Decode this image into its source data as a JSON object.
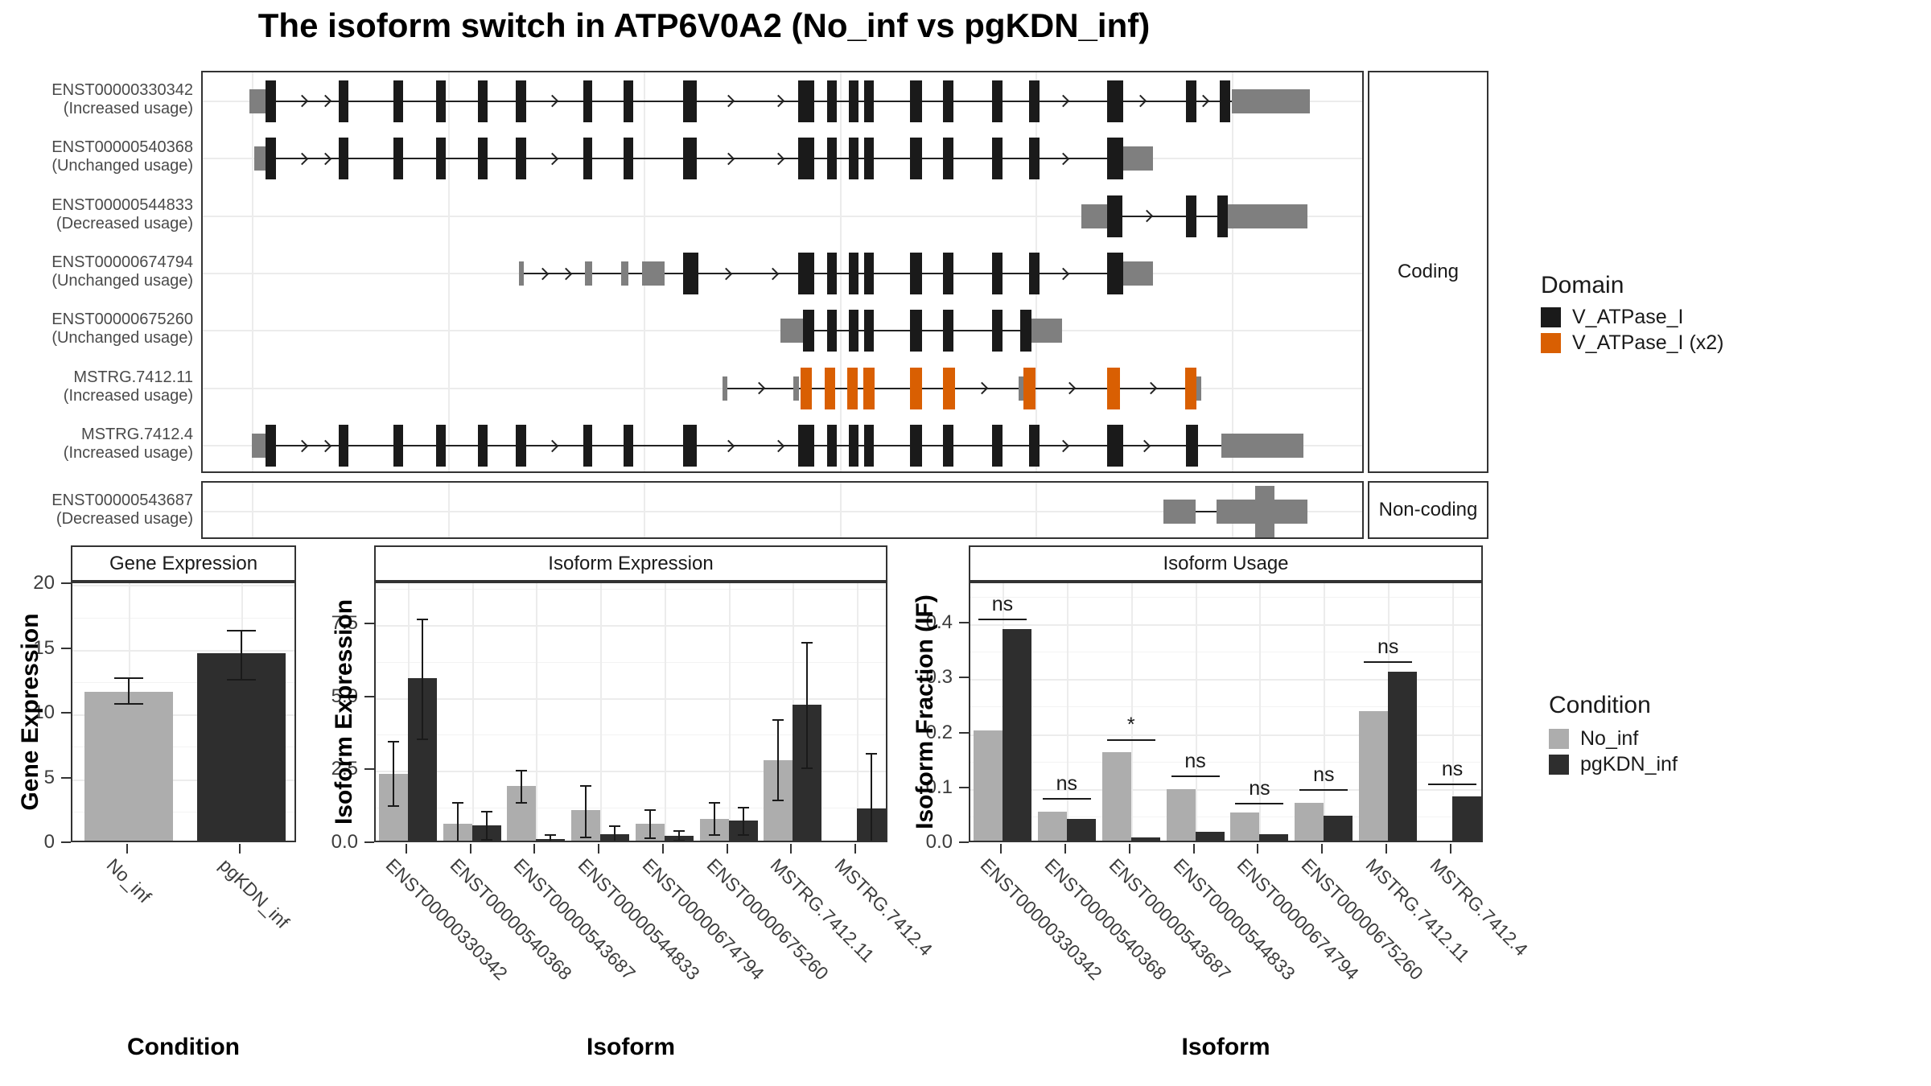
{
  "title": "The isoform switch in ATP6V0A2 (No_inf vs pgKDN_inf)",
  "transcript_plot": {
    "coding_strip": "Coding",
    "noncoding_strip": "Non-coding",
    "legend": {
      "title": "Domain",
      "items": [
        {
          "label": "V_ATPase_I",
          "color": "#1a1a1a"
        },
        {
          "label": "V_ATPase_I (x2)",
          "color": "#D95F02"
        }
      ]
    },
    "rows": [
      {
        "id": "ENST00000330342",
        "usage": "(Increased usage)",
        "panel": "coding",
        "exons": [
          [
            0.04,
            0.016,
            "u"
          ],
          [
            0.054,
            0.009,
            "c"
          ],
          [
            0.117,
            0.008,
            "c"
          ],
          [
            0.164,
            0.008,
            "c"
          ],
          [
            0.201,
            0.008,
            "c"
          ],
          [
            0.237,
            0.008,
            "c"
          ],
          [
            0.269,
            0.009,
            "c"
          ],
          [
            0.327,
            0.008,
            "c"
          ],
          [
            0.362,
            0.008,
            "c"
          ],
          [
            0.413,
            0.012,
            "c"
          ],
          [
            0.512,
            0.014,
            "c"
          ],
          [
            0.537,
            0.008,
            "c"
          ],
          [
            0.556,
            0.008,
            "c"
          ],
          [
            0.569,
            0.008,
            "c"
          ],
          [
            0.608,
            0.011,
            "c"
          ],
          [
            0.637,
            0.009,
            "c"
          ],
          [
            0.679,
            0.009,
            "c"
          ],
          [
            0.711,
            0.009,
            "c"
          ],
          [
            0.778,
            0.014,
            "c"
          ],
          [
            0.846,
            0.009,
            "c"
          ],
          [
            0.875,
            0.009,
            "c"
          ],
          [
            0.885,
            0.067,
            "u"
          ]
        ],
        "arrows": [
          0.085,
          0.105,
          0.3,
          0.452,
          0.495,
          0.74,
          0.806,
          0.86
        ]
      },
      {
        "id": "ENST00000540368",
        "usage": "(Unchanged usage)",
        "panel": "coding",
        "exons": [
          [
            0.044,
            0.012,
            "u"
          ],
          [
            0.054,
            0.009,
            "c"
          ],
          [
            0.117,
            0.008,
            "c"
          ],
          [
            0.164,
            0.008,
            "c"
          ],
          [
            0.201,
            0.008,
            "c"
          ],
          [
            0.237,
            0.008,
            "c"
          ],
          [
            0.269,
            0.009,
            "c"
          ],
          [
            0.327,
            0.008,
            "c"
          ],
          [
            0.362,
            0.008,
            "c"
          ],
          [
            0.413,
            0.012,
            "c"
          ],
          [
            0.512,
            0.014,
            "c"
          ],
          [
            0.537,
            0.008,
            "c"
          ],
          [
            0.556,
            0.008,
            "c"
          ],
          [
            0.569,
            0.008,
            "c"
          ],
          [
            0.608,
            0.011,
            "c"
          ],
          [
            0.637,
            0.009,
            "c"
          ],
          [
            0.679,
            0.009,
            "c"
          ],
          [
            0.711,
            0.009,
            "c"
          ],
          [
            0.778,
            0.014,
            "c"
          ],
          [
            0.792,
            0.025,
            "u"
          ]
        ],
        "arrows": [
          0.085,
          0.105,
          0.3,
          0.452,
          0.495,
          0.74
        ]
      },
      {
        "id": "ENST00000544833",
        "usage": "(Decreased usage)",
        "panel": "coding",
        "exons": [
          [
            0.756,
            0.022,
            "u"
          ],
          [
            0.778,
            0.013,
            "c"
          ],
          [
            0.846,
            0.009,
            "c"
          ],
          [
            0.873,
            0.009,
            "c"
          ],
          [
            0.882,
            0.068,
            "u"
          ]
        ],
        "arrows": [
          0.812
        ]
      },
      {
        "id": "ENST00000674794",
        "usage": "(Unchanged usage)",
        "panel": "coding",
        "exons": [
          [
            0.272,
            0.004,
            "u"
          ],
          [
            0.329,
            0.006,
            "u"
          ],
          [
            0.36,
            0.006,
            "u"
          ],
          [
            0.378,
            0.019,
            "u"
          ],
          [
            0.413,
            0.013,
            "c"
          ],
          [
            0.512,
            0.014,
            "c"
          ],
          [
            0.537,
            0.008,
            "c"
          ],
          [
            0.556,
            0.008,
            "c"
          ],
          [
            0.569,
            0.008,
            "c"
          ],
          [
            0.608,
            0.011,
            "c"
          ],
          [
            0.637,
            0.009,
            "c"
          ],
          [
            0.679,
            0.009,
            "c"
          ],
          [
            0.711,
            0.009,
            "c"
          ],
          [
            0.778,
            0.014,
            "c"
          ],
          [
            0.792,
            0.025,
            "u"
          ]
        ],
        "arrows": [
          0.292,
          0.312,
          0.45,
          0.49,
          0.74
        ]
      },
      {
        "id": "ENST00000675260",
        "usage": "(Unchanged usage)",
        "panel": "coding",
        "exons": [
          [
            0.497,
            0.019,
            "u"
          ],
          [
            0.516,
            0.01,
            "c"
          ],
          [
            0.537,
            0.008,
            "c"
          ],
          [
            0.556,
            0.008,
            "c"
          ],
          [
            0.569,
            0.008,
            "c"
          ],
          [
            0.608,
            0.011,
            "c"
          ],
          [
            0.637,
            0.009,
            "c"
          ],
          [
            0.679,
            0.009,
            "c"
          ],
          [
            0.703,
            0.01,
            "c"
          ],
          [
            0.713,
            0.026,
            "u"
          ]
        ],
        "arrows": []
      },
      {
        "id": "MSTRG.7412.11",
        "usage": "(Increased usage)",
        "panel": "coding",
        "exons": [
          [
            0.447,
            0.004,
            "u"
          ],
          [
            0.508,
            0.005,
            "u"
          ],
          [
            0.514,
            0.01,
            "d"
          ],
          [
            0.535,
            0.009,
            "d"
          ],
          [
            0.554,
            0.009,
            "d"
          ],
          [
            0.568,
            0.01,
            "d"
          ],
          [
            0.608,
            0.011,
            "d"
          ],
          [
            0.637,
            0.01,
            "d"
          ],
          [
            0.702,
            0.004,
            "u"
          ],
          [
            0.706,
            0.01,
            "d"
          ],
          [
            0.778,
            0.011,
            "d"
          ],
          [
            0.845,
            0.01,
            "d"
          ],
          [
            0.855,
            0.004,
            "u"
          ]
        ],
        "arrows": [
          0.478,
          0.67,
          0.745,
          0.815
        ]
      },
      {
        "id": "MSTRG.7412.4",
        "usage": "(Increased usage)",
        "panel": "coding",
        "exons": [
          [
            0.042,
            0.013,
            "u"
          ],
          [
            0.054,
            0.009,
            "c"
          ],
          [
            0.117,
            0.008,
            "c"
          ],
          [
            0.164,
            0.008,
            "c"
          ],
          [
            0.201,
            0.008,
            "c"
          ],
          [
            0.237,
            0.008,
            "c"
          ],
          [
            0.269,
            0.009,
            "c"
          ],
          [
            0.327,
            0.008,
            "c"
          ],
          [
            0.362,
            0.008,
            "c"
          ],
          [
            0.413,
            0.012,
            "c"
          ],
          [
            0.512,
            0.014,
            "c"
          ],
          [
            0.537,
            0.008,
            "c"
          ],
          [
            0.556,
            0.008,
            "c"
          ],
          [
            0.569,
            0.008,
            "c"
          ],
          [
            0.608,
            0.011,
            "c"
          ],
          [
            0.637,
            0.009,
            "c"
          ],
          [
            0.679,
            0.009,
            "c"
          ],
          [
            0.711,
            0.009,
            "c"
          ],
          [
            0.778,
            0.014,
            "c"
          ],
          [
            0.846,
            0.01,
            "c"
          ],
          [
            0.876,
            0.071,
            "u"
          ]
        ],
        "arrows": [
          0.085,
          0.105,
          0.3,
          0.452,
          0.495,
          0.74,
          0.81
        ]
      },
      {
        "id": "ENST00000543687",
        "usage": "(Decreased usage)",
        "panel": "noncoding",
        "exons": [
          [
            0.826,
            0.028,
            "u"
          ],
          [
            0.872,
            0.078,
            "u"
          ],
          [
            0.905,
            0.017,
            "t"
          ]
        ],
        "arrows": []
      }
    ]
  },
  "condition_legend": {
    "title": "Condition",
    "items": [
      {
        "label": "No_inf",
        "color": "#ADADAD"
      },
      {
        "label": "pgKDN_inf",
        "color": "#2E2E2E"
      }
    ]
  },
  "chart_data": [
    {
      "type": "bar",
      "title": "Gene Expression",
      "xlabel": "Condition",
      "ylabel": "Gene Expression",
      "categories": [
        "No_inf",
        "pgKDN_inf"
      ],
      "values": [
        11.7,
        14.65
      ],
      "errors": [
        [
          10.8,
          12.8
        ],
        [
          12.7,
          16.5
        ]
      ],
      "bar_colors": [
        "#ADADAD",
        "#2E2E2E"
      ],
      "ylim": [
        0,
        20.15
      ],
      "yticks": [
        0,
        5,
        10,
        15,
        20
      ],
      "ytick_decimals": 0,
      "legend_position": "none",
      "grid": true
    },
    {
      "type": "bar",
      "title": "Isoform Expression",
      "xlabel": "Isoform",
      "ylabel": "Isoform Expression",
      "categories": [
        "ENST00000330342",
        "ENST00000540368",
        "ENST00000543687",
        "ENST00000544833",
        "ENST00000674794",
        "ENST00000675260",
        "MSTRG.7412.11",
        "MSTRG.7412.4"
      ],
      "series": [
        {
          "name": "No_inf",
          "color": "#ADADAD",
          "values": [
            2.38,
            0.65,
            1.95,
            1.12,
            0.67,
            0.82,
            2.85,
            0.02
          ],
          "errors": [
            [
              1.3,
              3.5
            ],
            [
              0.0,
              1.4
            ],
            [
              1.4,
              2.5
            ],
            [
              0.22,
              2.0
            ],
            [
              0.2,
              1.15
            ],
            [
              0.3,
              1.4
            ],
            [
              1.5,
              4.25
            ],
            [
              0.0,
              0.05
            ]
          ]
        },
        {
          "name": "pgKDN_inf",
          "color": "#2E2E2E",
          "values": [
            5.67,
            0.61,
            0.15,
            0.3,
            0.25,
            0.78,
            4.75,
            1.18
          ],
          "errors": [
            [
              3.6,
              7.7
            ],
            [
              0.15,
              1.1
            ],
            [
              0.04,
              0.3
            ],
            [
              0.05,
              0.62
            ],
            [
              0.1,
              0.43
            ],
            [
              0.3,
              1.25
            ],
            [
              2.6,
              6.9
            ],
            [
              0.0,
              3.1
            ]
          ]
        }
      ],
      "ylim": [
        0,
        8.95
      ],
      "yticks": [
        0,
        2.5,
        5,
        7.5
      ],
      "ytick_decimals": 1,
      "legend_position": "right",
      "grid": true
    },
    {
      "type": "bar",
      "title": "Isoform Usage",
      "xlabel": "Isoform",
      "ylabel": "Isoform Fraction (IF)",
      "categories": [
        "ENST00000330342",
        "ENST00000540368",
        "ENST00000543687",
        "ENST00000544833",
        "ENST00000674794",
        "ENST00000675260",
        "MSTRG.7412.11",
        "MSTRG.7412.4"
      ],
      "series": [
        {
          "name": "No_inf",
          "color": "#ADADAD",
          "values": [
            0.205,
            0.057,
            0.165,
            0.098,
            0.055,
            0.073,
            0.24,
            0.0
          ]
        },
        {
          "name": "pgKDN_inf",
          "color": "#2E2E2E",
          "values": [
            0.39,
            0.044,
            0.01,
            0.021,
            0.016,
            0.05,
            0.313,
            0.085
          ]
        }
      ],
      "significance": [
        {
          "label": "ns",
          "y": 0.41
        },
        {
          "label": "ns",
          "y": 0.084
        },
        {
          "label": "*",
          "y": 0.19
        },
        {
          "label": "ns",
          "y": 0.125
        },
        {
          "label": "ns",
          "y": 0.075
        },
        {
          "label": "ns",
          "y": 0.1
        },
        {
          "label": "ns",
          "y": 0.333
        },
        {
          "label": "ns",
          "y": 0.11
        }
      ],
      "ylim": [
        0,
        0.475
      ],
      "yticks": [
        0,
        0.1,
        0.2,
        0.3,
        0.4
      ],
      "ytick_decimals": 1,
      "legend_position": "right",
      "grid": true
    }
  ]
}
